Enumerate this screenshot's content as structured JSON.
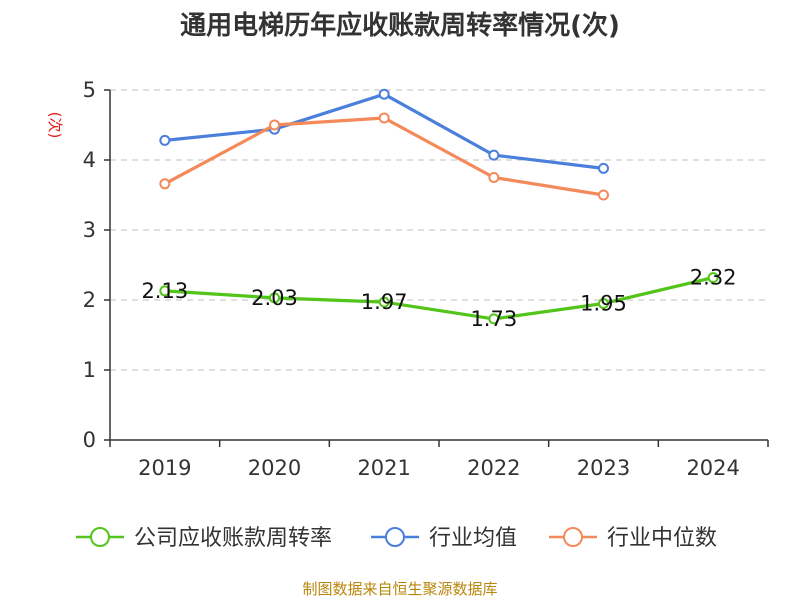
{
  "title": "通用电梯历年应收账款周转率情况(次)",
  "source": "制图数据来自恒生聚源数据库",
  "chart_data": {
    "type": "line",
    "title": "通用电梯历年应收账款周转率情况(次)",
    "ylabel": "(次)",
    "xlabel": "",
    "categories": [
      "2019",
      "2020",
      "2021",
      "2022",
      "2023",
      "2024"
    ],
    "ylim": [
      0,
      5
    ],
    "yticks": [
      0,
      1,
      2,
      3,
      4,
      5
    ],
    "grid": true,
    "legend_position": "bottom",
    "series": [
      {
        "name": "公司应收账款周转率",
        "color": "#52c41a",
        "values": [
          2.13,
          2.03,
          1.97,
          1.73,
          1.95,
          2.32
        ],
        "labels": [
          "2.13",
          "2.03",
          "1.97",
          "1.73",
          "1.95",
          "2.32"
        ]
      },
      {
        "name": "行业均值",
        "color": "#4a7fdc",
        "values": [
          4.28,
          4.44,
          4.94,
          4.07,
          3.88,
          null
        ]
      },
      {
        "name": "行业中位数",
        "color": "#f4895a",
        "values": [
          3.66,
          4.5,
          4.6,
          3.75,
          3.5,
          null
        ]
      }
    ]
  }
}
